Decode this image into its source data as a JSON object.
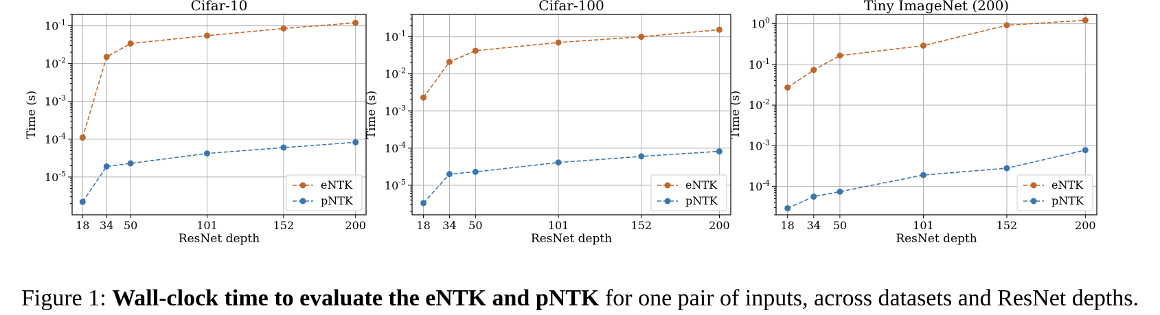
{
  "chart_data": [
    {
      "type": "line",
      "title": "Cifar-10",
      "xlabel": "ResNet depth",
      "ylabel": "Time (s)",
      "yscale": "log",
      "x": [
        18,
        34,
        50,
        101,
        152,
        200
      ],
      "xticks": [
        "18",
        "34",
        "50",
        "101",
        "152",
        "200"
      ],
      "ylim": [
        1e-06,
        0.2
      ],
      "yticks": [
        {
          "exp": -5,
          "label": "10",
          "sup": "-5"
        },
        {
          "exp": -4,
          "label": "10",
          "sup": "-4"
        },
        {
          "exp": -3,
          "label": "10",
          "sup": "-3"
        },
        {
          "exp": -2,
          "label": "10",
          "sup": "-2"
        },
        {
          "exp": -1,
          "label": "10",
          "sup": "-1"
        }
      ],
      "grid": true,
      "legend_position": "lower-right",
      "series": [
        {
          "name": "eNTK",
          "color": "#c1672b",
          "linestyle": "dashed",
          "values": [
            0.00011,
            0.015,
            0.034,
            0.055,
            0.085,
            0.12
          ]
        },
        {
          "name": "pNTK",
          "color": "#3c76af",
          "linestyle": "dashed",
          "values": [
            2.2e-06,
            1.9e-05,
            2.3e-05,
            4.2e-05,
            6e-05,
            8.3e-05
          ]
        }
      ]
    },
    {
      "type": "line",
      "title": "Cifar-100",
      "xlabel": "ResNet depth",
      "ylabel": "Time (s)",
      "yscale": "log",
      "x": [
        18,
        34,
        50,
        101,
        152,
        200
      ],
      "xticks": [
        "18",
        "34",
        "50",
        "101",
        "152",
        "200"
      ],
      "ylim": [
        1.6e-06,
        0.4
      ],
      "yticks": [
        {
          "exp": -5,
          "label": "10",
          "sup": "-5"
        },
        {
          "exp": -4,
          "label": "10",
          "sup": "-4"
        },
        {
          "exp": -3,
          "label": "10",
          "sup": "-3"
        },
        {
          "exp": -2,
          "label": "10",
          "sup": "-2"
        },
        {
          "exp": -1,
          "label": "10",
          "sup": "-1"
        }
      ],
      "grid": true,
      "legend_position": "lower-right",
      "series": [
        {
          "name": "eNTK",
          "color": "#c1672b",
          "linestyle": "dashed",
          "values": [
            0.0023,
            0.021,
            0.042,
            0.07,
            0.1,
            0.155
          ]
        },
        {
          "name": "pNTK",
          "color": "#3c76af",
          "linestyle": "dashed",
          "values": [
            3.3e-06,
            2e-05,
            2.3e-05,
            4.1e-05,
            6e-05,
            8.2e-05
          ]
        }
      ]
    },
    {
      "type": "line",
      "title": "Tiny ImageNet (200)",
      "xlabel": "ResNet depth",
      "ylabel": "Time (s)",
      "yscale": "log",
      "x": [
        18,
        34,
        50,
        101,
        152,
        200
      ],
      "xticks": [
        "18",
        "34",
        "50",
        "101",
        "152",
        "200"
      ],
      "ylim": [
        2e-05,
        1.7
      ],
      "yticks": [
        {
          "exp": -4,
          "label": "10",
          "sup": "-4"
        },
        {
          "exp": -3,
          "label": "10",
          "sup": "-3"
        },
        {
          "exp": -2,
          "label": "10",
          "sup": "-2"
        },
        {
          "exp": -1,
          "label": "10",
          "sup": "-1"
        },
        {
          "exp": 0,
          "label": "10",
          "sup": "0"
        }
      ],
      "grid": true,
      "legend_position": "lower-right",
      "series": [
        {
          "name": "eNTK",
          "color": "#c1672b",
          "linestyle": "dashed",
          "values": [
            0.027,
            0.073,
            0.165,
            0.29,
            0.92,
            1.22
          ]
        },
        {
          "name": "pNTK",
          "color": "#3c76af",
          "linestyle": "dashed",
          "values": [
            2.9e-05,
            5.6e-05,
            7.4e-05,
            0.00019,
            0.00028,
            0.00078
          ]
        }
      ]
    }
  ],
  "caption": {
    "prefix": "Figure 1: ",
    "bold": "Wall-clock time to evaluate the eNTK and pNTK",
    "rest": " for one pair of inputs, across datasets and ResNet depths."
  }
}
